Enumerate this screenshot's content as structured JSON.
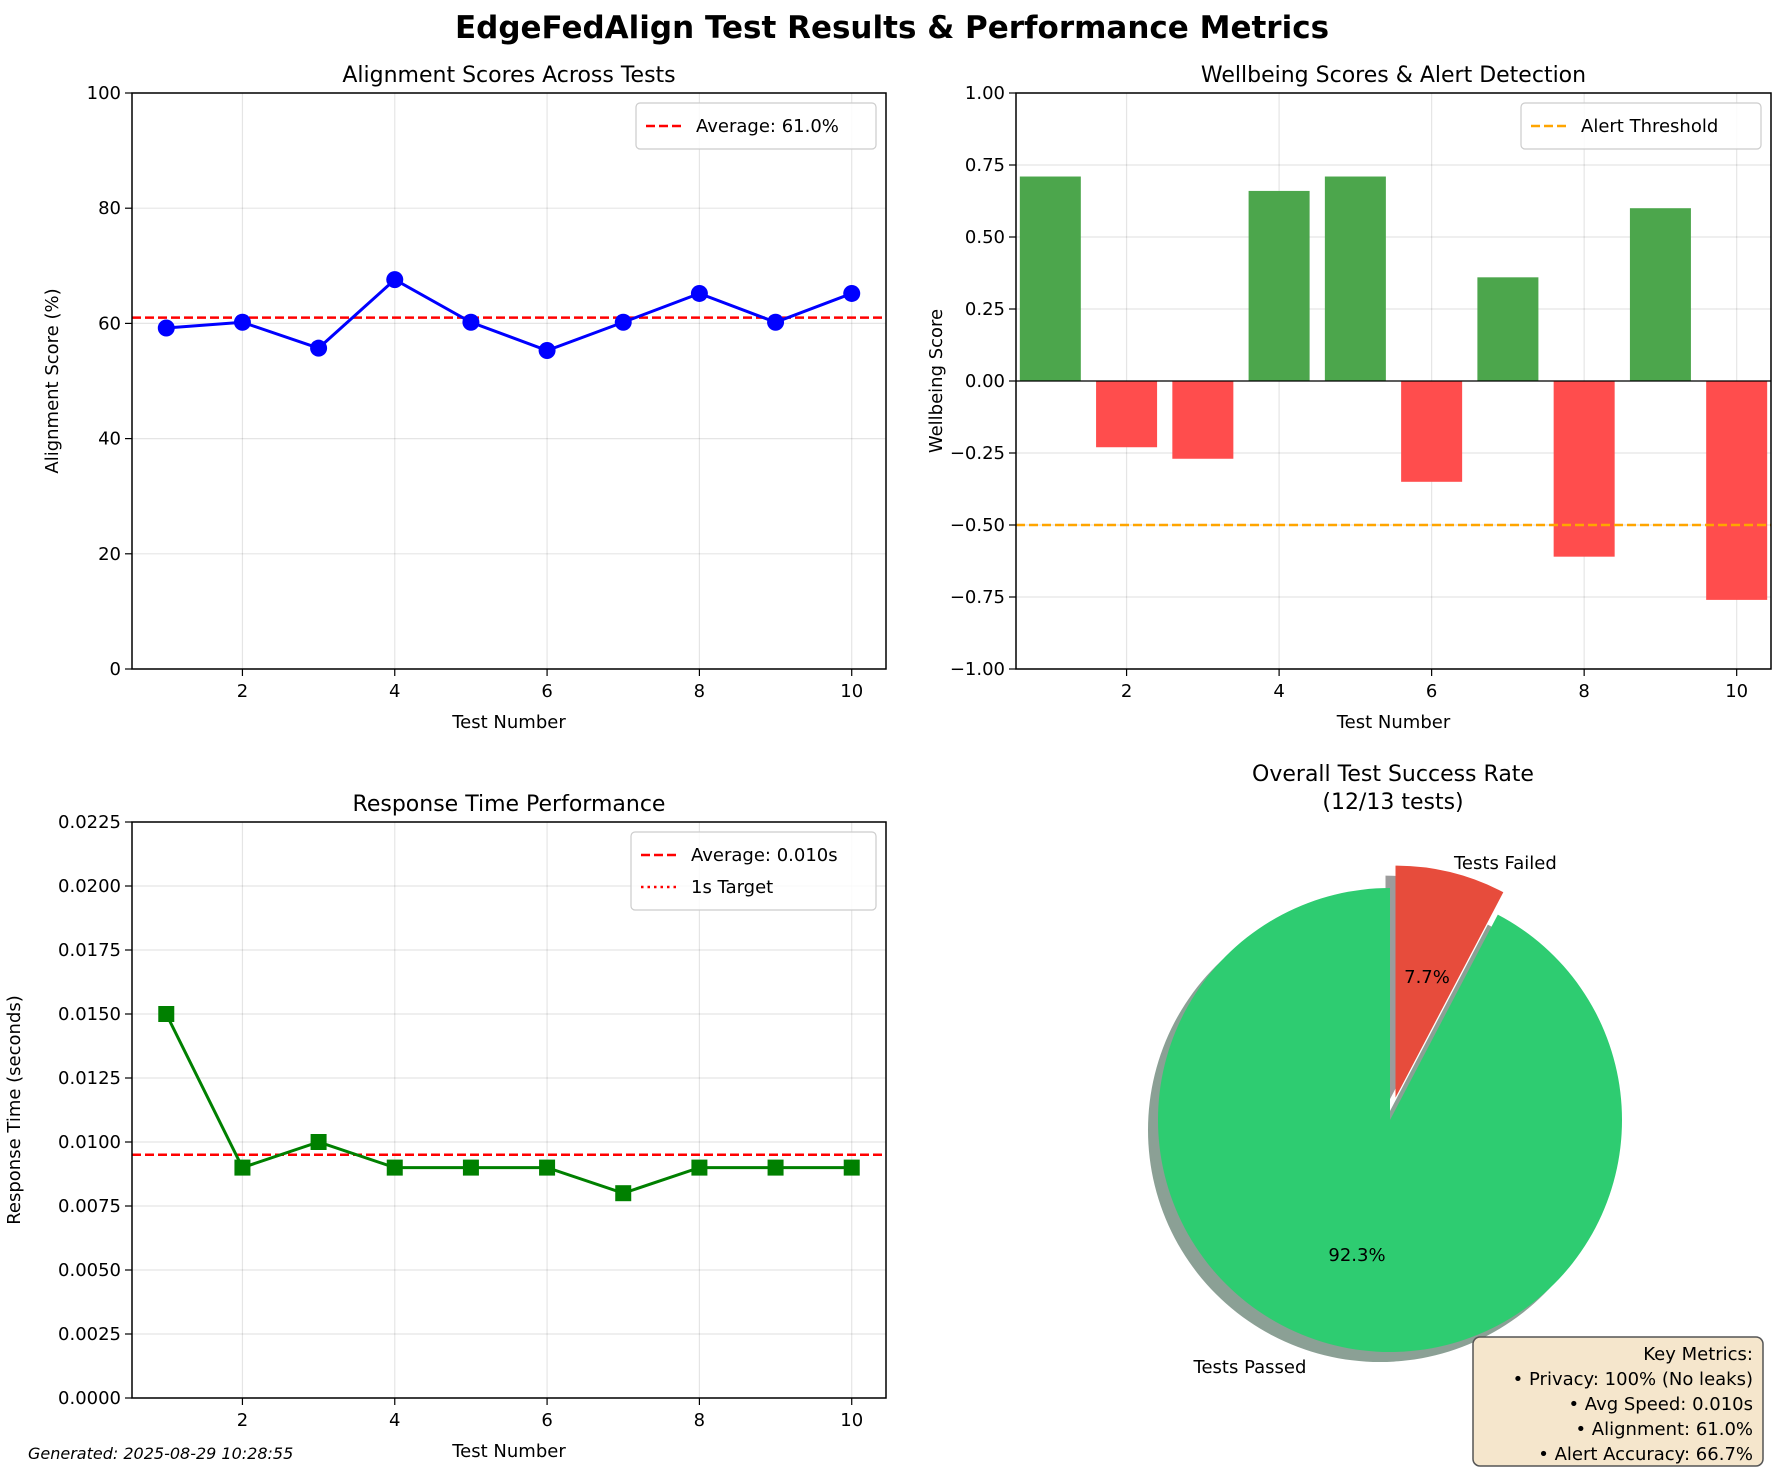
{
  "suptitle": "EdgeFedAlign Test Results & Performance Metrics",
  "footer": "Generated: 2025-08-29 10:28:55",
  "metrics_box": {
    "lines": [
      "Key Metrics:",
      "• Privacy: 100% (No leaks)",
      "• Avg Speed: 0.010s",
      "• Alignment: 61.0%",
      "• Alert Accuracy: 66.7%"
    ],
    "background": "#f5e6cc"
  },
  "chart_data": [
    {
      "type": "line",
      "title": "Alignment Scores Across Tests",
      "xlabel": "Test Number",
      "ylabel": "Alignment Score (%)",
      "x": [
        1,
        2,
        3,
        4,
        5,
        6,
        7,
        8,
        9,
        10
      ],
      "series": [
        {
          "values": [
            59.2,
            60.2,
            55.7,
            67.6,
            60.2,
            55.3,
            60.2,
            65.2,
            60.2,
            65.2
          ],
          "color": "#0000ff",
          "marker": "circle"
        }
      ],
      "hlines": [
        {
          "label": "Average: 61.0%",
          "value": 61.0,
          "color": "#ff0000",
          "style": "dashed"
        }
      ],
      "xticks": [
        2,
        4,
        6,
        8,
        10
      ],
      "yticks": [
        "0",
        "20",
        "40",
        "60",
        "80",
        "100"
      ],
      "ylim": [
        0,
        100
      ],
      "grid": true,
      "legend": "top-right"
    },
    {
      "type": "bar",
      "title": "Wellbeing Scores & Alert Detection",
      "xlabel": "Test Number",
      "ylabel": "Wellbeing Score",
      "x": [
        1,
        2,
        3,
        4,
        5,
        6,
        7,
        8,
        9,
        10
      ],
      "values": [
        0.71,
        -0.23,
        -0.27,
        0.66,
        0.71,
        -0.35,
        0.36,
        -0.61,
        0.6,
        -0.76
      ],
      "positive_color": "#4ca64c",
      "negative_color": "#ff4d4d",
      "hlines": [
        {
          "label": "Alert Threshold",
          "value": -0.5,
          "color": "#ffa500",
          "style": "dashed"
        }
      ],
      "xticks": [
        2,
        4,
        6,
        8,
        10
      ],
      "yticks": [
        "−1.00",
        "−0.75",
        "−0.50",
        "−0.25",
        "0.00",
        "0.25",
        "0.50",
        "0.75",
        "1.00"
      ],
      "ylim": [
        -1,
        1
      ],
      "grid": true,
      "legend": "top-right"
    },
    {
      "type": "line",
      "title": "Response Time Performance",
      "xlabel": "Test Number",
      "ylabel": "Response Time (seconds)",
      "x": [
        1,
        2,
        3,
        4,
        5,
        6,
        7,
        8,
        9,
        10
      ],
      "series": [
        {
          "values": [
            0.015,
            0.009,
            0.01,
            0.009,
            0.009,
            0.009,
            0.008,
            0.009,
            0.009,
            0.009
          ],
          "color": "#008000",
          "marker": "square"
        }
      ],
      "hlines": [
        {
          "label": "Average: 0.010s",
          "value": 0.0095,
          "color": "#ff0000",
          "style": "dashed"
        },
        {
          "label": "1s Target",
          "value": 1.0,
          "color": "#ff0000",
          "style": "dotted"
        }
      ],
      "xticks": [
        2,
        4,
        6,
        8,
        10
      ],
      "yticks": [
        "0.0000",
        "0.0025",
        "0.0050",
        "0.0075",
        "0.0100",
        "0.0125",
        "0.0150",
        "0.0175",
        "0.0200",
        "0.0225"
      ],
      "ylim": [
        0,
        0.0225
      ],
      "grid": true,
      "legend": "top-right"
    },
    {
      "type": "pie",
      "title": "Overall Test Success Rate",
      "subtitle": "(12/13 tests)",
      "slices": [
        {
          "label": "Tests Passed",
          "value": 12,
          "pct": "92.3%",
          "color": "#2ecc71"
        },
        {
          "label": "Tests Failed",
          "value": 1,
          "pct": "7.7%",
          "color": "#e74c3c"
        }
      ],
      "shadow": true,
      "explode": "Tests Failed"
    }
  ]
}
